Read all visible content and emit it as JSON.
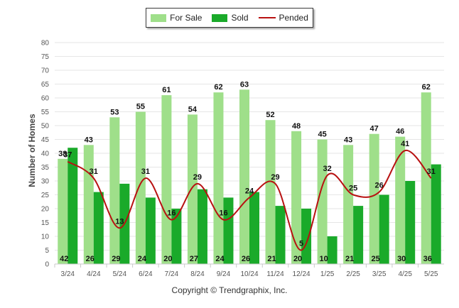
{
  "legend": {
    "for_sale": "For Sale",
    "sold": "Sold",
    "pended": "Pended"
  },
  "footer": "Copyright © Trendgraphix, Inc.",
  "colors": {
    "for_sale": "#9fdf8a",
    "sold": "#1aaa2a",
    "pended": "#b81111",
    "grid": "#e6e6e6"
  },
  "chart_data": {
    "type": "bar",
    "ylabel": "Number of Homes",
    "xlabel": "",
    "ylim": [
      0,
      80
    ],
    "yticks": [
      0,
      5,
      10,
      15,
      20,
      25,
      30,
      35,
      40,
      45,
      50,
      55,
      60,
      65,
      70,
      75,
      80
    ],
    "grid": true,
    "legend_position": "top-center",
    "categories": [
      "3/24",
      "4/24",
      "5/24",
      "6/24",
      "7/24",
      "8/24",
      "9/24",
      "10/24",
      "11/24",
      "12/24",
      "1/25",
      "2/25",
      "3/25",
      "4/25",
      "5/25"
    ],
    "series": [
      {
        "name": "For Sale",
        "type": "bar",
        "values": [
          38,
          43,
          53,
          55,
          61,
          54,
          62,
          63,
          52,
          48,
          45,
          43,
          47,
          46,
          62
        ]
      },
      {
        "name": "Sold",
        "type": "bar",
        "values": [
          42,
          26,
          29,
          24,
          20,
          27,
          24,
          26,
          21,
          20,
          10,
          21,
          25,
          30,
          36
        ]
      },
      {
        "name": "Pended",
        "type": "line",
        "values": [
          37,
          31,
          13,
          31,
          16,
          29,
          16,
          24,
          29,
          5,
          32,
          25,
          26,
          41,
          31
        ]
      }
    ]
  }
}
